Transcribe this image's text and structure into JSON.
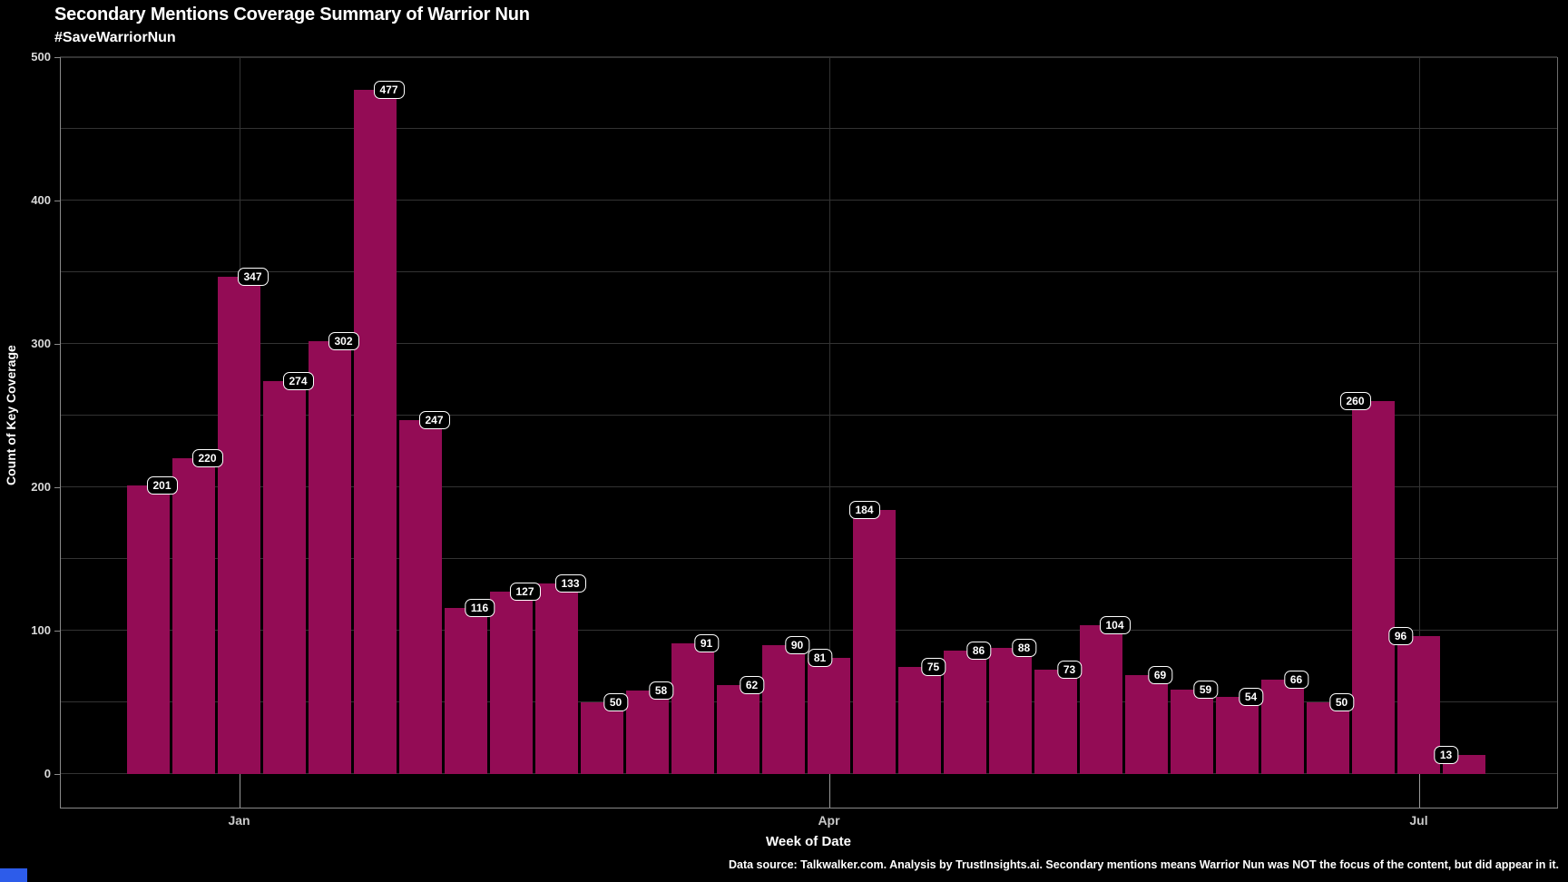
{
  "header": {
    "title": "Secondary Mentions Coverage Summary of Warrior Nun",
    "subtitle": "#SaveWarriorNun"
  },
  "footer": {
    "note": "Data source: Talkwalker.com. Analysis by TrustInsights.ai. Secondary mentions means Warrior Nun was NOT the focus of the content, but did appear in it."
  },
  "chart_data": {
    "type": "bar",
    "title": "Secondary Mentions Coverage Summary of Warrior Nun",
    "subtitle": "#SaveWarriorNun",
    "xlabel": "Week of Date",
    "ylabel": "Count of Key Coverage",
    "ylim": [
      0,
      500
    ],
    "y_ticks": [
      0,
      100,
      200,
      300,
      400,
      500
    ],
    "y_minor_grid_step": 50,
    "grid": true,
    "legend": false,
    "bar_color": "#930C55",
    "background_color": "#000000",
    "x_ticks": [
      {
        "label": "Jan",
        "bar_index": 2
      },
      {
        "label": "Apr",
        "bar_index": 15
      },
      {
        "label": "Jul",
        "bar_index": 28
      }
    ],
    "series_name": "Count of Key Coverage by Week of Date",
    "values": [
      201,
      220,
      347,
      274,
      302,
      477,
      247,
      116,
      127,
      133,
      50,
      58,
      91,
      62,
      90,
      81,
      184,
      75,
      86,
      88,
      73,
      104,
      69,
      59,
      54,
      66,
      50,
      260,
      96,
      13
    ],
    "bar_value_labels": [
      "201",
      "220",
      "347",
      "274",
      "302",
      "477",
      "247",
      "116",
      "127",
      "133",
      "50",
      "58",
      "91",
      "62",
      "90",
      "81",
      "184",
      "75",
      "86",
      "88",
      "73",
      "104",
      "69",
      "59",
      "54",
      "66",
      "50",
      "260",
      "96",
      "13"
    ]
  }
}
